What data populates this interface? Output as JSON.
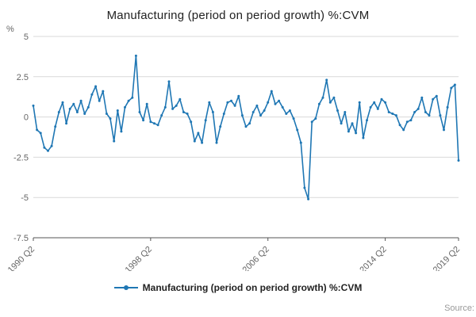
{
  "title": "Manufacturing (period on period growth) %:CVM",
  "legend": {
    "label": "Manufacturing (period on period growth) %:CVM"
  },
  "source_label": "Source:",
  "chart_data": {
    "type": "line",
    "title": "Manufacturing (period on period growth) %:CVM",
    "xlabel": "",
    "ylabel": "%",
    "ylim": [
      -7.5,
      5
    ],
    "yticks": [
      5,
      2.5,
      0,
      -2.5,
      -5,
      -7.5
    ],
    "grid": true,
    "legend_position": "bottom",
    "x_start": "1990 Q2",
    "x_end": "2019 Q2",
    "x_frequency": "quarterly",
    "xticks": [
      {
        "index": 0,
        "label": "1990 Q2"
      },
      {
        "index": 32,
        "label": "1998 Q2"
      },
      {
        "index": 64,
        "label": "2006 Q2"
      },
      {
        "index": 96,
        "label": "2014 Q2"
      },
      {
        "index": 116,
        "label": "2019 Q2"
      }
    ],
    "series": [
      {
        "name": "Manufacturing (period on period growth) %:CVM",
        "values": [
          0.7,
          -0.8,
          -1.0,
          -1.9,
          -2.1,
          -1.8,
          -0.6,
          0.3,
          0.9,
          -0.4,
          0.5,
          0.8,
          0.3,
          1.0,
          0.2,
          0.6,
          1.4,
          1.9,
          1.0,
          1.6,
          0.2,
          -0.1,
          -1.5,
          0.4,
          -0.9,
          0.6,
          1.0,
          1.2,
          3.8,
          0.3,
          -0.2,
          0.8,
          -0.3,
          -0.4,
          -0.5,
          0.1,
          0.6,
          2.2,
          0.5,
          0.7,
          1.1,
          0.3,
          0.2,
          -0.3,
          -1.5,
          -1.0,
          -1.6,
          -0.2,
          0.9,
          0.3,
          -1.6,
          -0.6,
          0.2,
          0.9,
          1.0,
          0.7,
          1.3,
          0.1,
          -0.6,
          -0.4,
          0.3,
          0.7,
          0.1,
          0.4,
          0.9,
          1.6,
          0.8,
          1.0,
          0.6,
          0.2,
          0.4,
          -0.1,
          -0.8,
          -1.6,
          -4.4,
          -5.1,
          -0.3,
          -0.1,
          0.8,
          1.2,
          2.3,
          0.9,
          1.2,
          0.4,
          -0.4,
          0.3,
          -0.9,
          -0.4,
          -1.0,
          0.9,
          -1.3,
          -0.2,
          0.6,
          0.9,
          0.5,
          1.1,
          0.9,
          0.3,
          0.2,
          0.1,
          -0.5,
          -0.8,
          -0.3,
          -0.2,
          0.3,
          0.5,
          1.2,
          0.3,
          0.1,
          1.1,
          1.3,
          0.1,
          -0.8,
          0.6,
          1.8,
          2.0,
          -2.7
        ]
      }
    ],
    "colors": {
      "line": "#1f77b4",
      "grid": "#d9d9d9",
      "axis": "#555555",
      "tick_label": "#666666"
    }
  }
}
